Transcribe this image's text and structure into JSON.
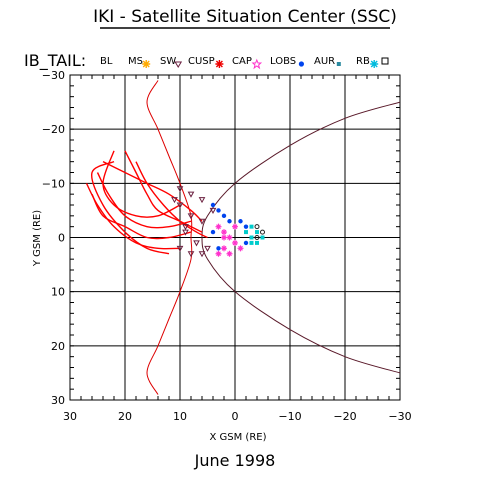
{
  "title": "IKI - Satellite Situation Center (SSC)",
  "colors": {
    "trajectory": "#ff0000",
    "boundary_red": "#dd0000",
    "boundary_dark": "#5a1a2a",
    "sw": "#6b2040",
    "cusp": "#cc0000",
    "cap": "#ff33cc",
    "lobs": "#0044ee",
    "aur": "#00cccc",
    "rb": "#222222",
    "grid": "#000000"
  },
  "legend": {
    "label": "IB_TAIL:",
    "items": [
      {
        "text": "BL",
        "icon": "none"
      },
      {
        "text": "MS",
        "icon": "asterisk-orange-icon"
      },
      {
        "text": "SW",
        "icon": "triangle-down-icon"
      },
      {
        "text": "CUSP",
        "icon": "asterisk-red-icon"
      },
      {
        "text": "CAP",
        "icon": "star-magenta-icon"
      },
      {
        "text": "LOBS",
        "icon": "dot-blue-icon"
      },
      {
        "text": "AUR",
        "icon": "square-teal-icon"
      },
      {
        "text": "RB",
        "icon": "asterisk-cyan-icon"
      },
      {
        "text": "",
        "icon": "square-outline-icon"
      }
    ]
  },
  "chart_data": {
    "type": "scatter",
    "title": "IKI - Satellite Situation Center (SSC)",
    "xlabel": "X GSM (RE)",
    "ylabel": "Y GSM (RE)",
    "xlim": [
      30,
      -30
    ],
    "ylim": [
      -30,
      30
    ],
    "xticks": [
      30,
      20,
      10,
      0,
      -10,
      -20,
      -30
    ],
    "yticks": [
      -30,
      -20,
      -10,
      0,
      10,
      20,
      30
    ],
    "xtick_labels": [
      "30",
      "20",
      "10",
      "0",
      "−10",
      "−20",
      "−30"
    ],
    "ytick_labels": [
      "−30",
      "−20",
      "−10",
      "0",
      "10",
      "20",
      "30"
    ],
    "grid": true,
    "boundaries": [
      {
        "kind": "bow-shock",
        "color": "red",
        "points": [
          [
            14,
            -29
          ],
          [
            16,
            -25
          ],
          [
            14,
            -20
          ],
          [
            12,
            -15
          ],
          [
            10,
            -10
          ],
          [
            8,
            -4
          ],
          [
            8,
            0
          ],
          [
            8,
            4
          ],
          [
            10,
            10
          ],
          [
            12,
            15
          ],
          [
            14,
            20
          ],
          [
            16,
            25
          ],
          [
            14,
            29
          ]
        ]
      },
      {
        "kind": "magnetopause",
        "color": "dark",
        "points": [
          [
            -30,
            -25
          ],
          [
            -20,
            -22
          ],
          [
            -10,
            -17
          ],
          [
            0,
            -10
          ],
          [
            5,
            -4
          ],
          [
            6,
            0
          ],
          [
            5,
            4
          ],
          [
            0,
            10
          ],
          [
            -10,
            17
          ],
          [
            -20,
            22
          ],
          [
            -30,
            25
          ]
        ]
      }
    ],
    "orbit_loops": [
      {
        "points": [
          [
            22,
            -16
          ],
          [
            24,
            -10
          ],
          [
            22,
            -6
          ],
          [
            18,
            -4
          ],
          [
            14,
            -4
          ],
          [
            10,
            -6
          ]
        ]
      },
      {
        "points": [
          [
            25,
            -12
          ],
          [
            23,
            -8
          ],
          [
            20,
            -4
          ],
          [
            16,
            -2
          ],
          [
            12,
            -2
          ],
          [
            8,
            -3
          ]
        ]
      },
      {
        "points": [
          [
            26,
            -8
          ],
          [
            24,
            -4
          ],
          [
            20,
            -2
          ],
          [
            16,
            0
          ],
          [
            12,
            0
          ],
          [
            8,
            -1
          ]
        ]
      },
      {
        "points": [
          [
            24,
            -14
          ],
          [
            20,
            -12
          ],
          [
            16,
            -10
          ],
          [
            12,
            -8
          ],
          [
            8,
            -5
          ],
          [
            6,
            -3
          ]
        ]
      },
      {
        "points": [
          [
            20,
            -16
          ],
          [
            18,
            -12
          ],
          [
            16,
            -8
          ],
          [
            14,
            -5
          ],
          [
            10,
            -3
          ],
          [
            6,
            -1
          ]
        ]
      },
      {
        "points": [
          [
            27,
            -10
          ],
          [
            25,
            -6
          ],
          [
            22,
            -2
          ],
          [
            18,
            1
          ],
          [
            14,
            2
          ],
          [
            10,
            2
          ]
        ]
      },
      {
        "points": [
          [
            22,
            -14
          ],
          [
            26,
            -12
          ],
          [
            24,
            -6
          ],
          [
            20,
            -1
          ],
          [
            16,
            2
          ],
          [
            12,
            3
          ]
        ]
      },
      {
        "points": [
          [
            18,
            -14
          ],
          [
            16,
            -10
          ],
          [
            13,
            -6
          ],
          [
            10,
            -3
          ],
          [
            7,
            -1
          ],
          [
            5,
            0
          ]
        ]
      }
    ],
    "region_points": [
      {
        "region": "SW",
        "points": [
          [
            10,
            -9
          ],
          [
            8,
            -8
          ],
          [
            6,
            -7
          ],
          [
            4,
            -5
          ],
          [
            10,
            -6
          ],
          [
            8,
            -4
          ],
          [
            6,
            -3
          ],
          [
            9,
            -2
          ],
          [
            7,
            1
          ],
          [
            5,
            2
          ],
          [
            10,
            2
          ],
          [
            8,
            3
          ],
          [
            6,
            3
          ],
          [
            9,
            -1
          ],
          [
            11,
            -7
          ]
        ]
      },
      {
        "region": "CAP",
        "points": [
          [
            3,
            -2
          ],
          [
            2,
            -1
          ],
          [
            1,
            0
          ],
          [
            0,
            1
          ],
          [
            2,
            2
          ],
          [
            3,
            3
          ],
          [
            1,
            3
          ],
          [
            -1,
            2
          ],
          [
            0,
            -2
          ],
          [
            2,
            0
          ]
        ]
      },
      {
        "region": "LOBS",
        "points": [
          [
            4,
            -6
          ],
          [
            3,
            -5
          ],
          [
            2,
            -4
          ],
          [
            -1,
            -3
          ],
          [
            -2,
            -2
          ],
          [
            4,
            -1
          ],
          [
            3,
            2
          ],
          [
            -2,
            1
          ],
          [
            1,
            -3
          ]
        ]
      },
      {
        "region": "AUR",
        "points": [
          [
            -3,
            0
          ],
          [
            -4,
            -1
          ],
          [
            -3,
            1
          ],
          [
            -5,
            0
          ],
          [
            -2,
            -1
          ],
          [
            -4,
            1
          ],
          [
            -3,
            -2
          ]
        ]
      },
      {
        "region": "RB",
        "points": [
          [
            -4,
            0
          ],
          [
            -5,
            -1
          ],
          [
            -4,
            -2
          ]
        ]
      }
    ]
  },
  "date_text": "June    1998"
}
